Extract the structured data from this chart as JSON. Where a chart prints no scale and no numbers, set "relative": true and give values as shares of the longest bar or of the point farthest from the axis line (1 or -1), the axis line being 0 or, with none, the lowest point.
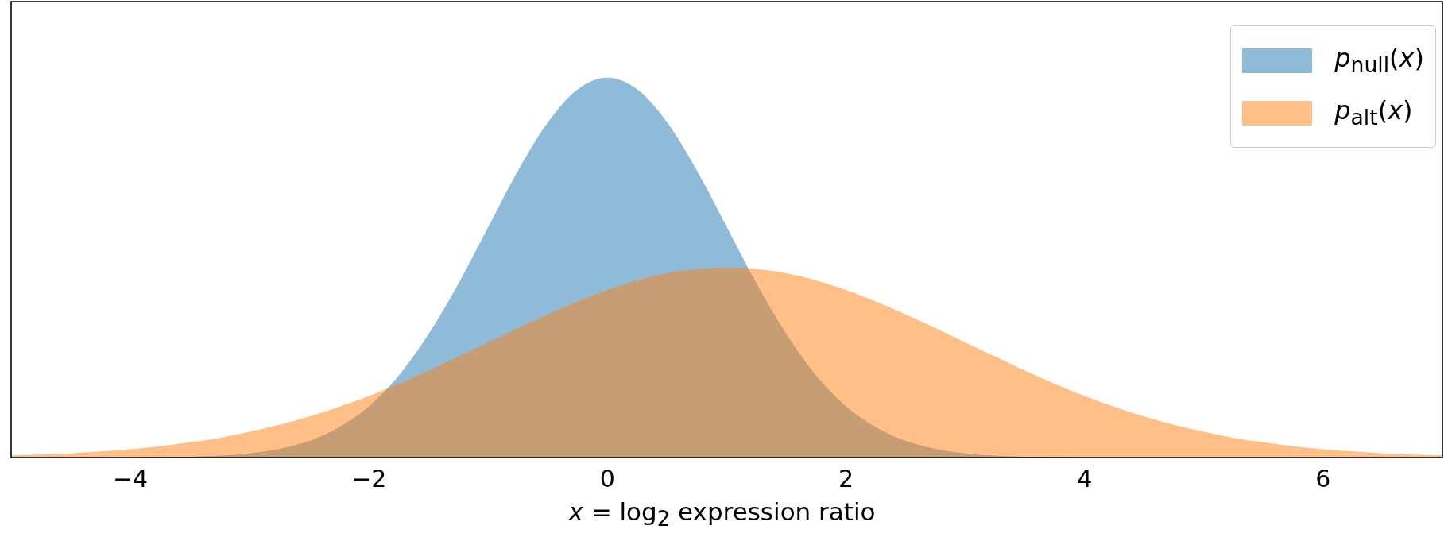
{
  "chart_data": {
    "type": "area",
    "xlabel": "x = log$_{2}$ expression ratio",
    "relative": true,
    "legend": "top right",
    "grid": false,
    "tick_labels": "x",
    "x": [
      -5,
      -4.75,
      -4.5,
      -4.25,
      -4,
      -3.75,
      -3.5,
      -3.25,
      -3,
      -2.75,
      -2.5,
      -2.25,
      -2,
      -1.75,
      -1.5,
      -1.25,
      -1,
      -0.75,
      -0.5,
      -0.25,
      0,
      0.25,
      0.5,
      0.75,
      1,
      1.25,
      1.5,
      1.75,
      2,
      2.25,
      2.5,
      2.75,
      3,
      3.25,
      3.5,
      3.75,
      4,
      4.25,
      4.5,
      4.75,
      5,
      5.25,
      5.5,
      5.75,
      6,
      6.25,
      6.5,
      6.75,
      7
    ],
    "xlim": [
      -5,
      7
    ],
    "xticks": [
      {
        "value": -4,
        "label": "−4"
      },
      {
        "value": -2,
        "label": "−2"
      },
      0,
      2,
      4,
      6
    ],
    "series": [
      {
        "name": "p$_{null}$(x)",
        "color": "#1f77b4",
        "values": [
          0,
          0,
          0,
          0,
          0,
          0.001,
          0.002,
          0.005,
          0.011,
          0.023,
          0.044,
          0.08,
          0.135,
          0.216,
          0.325,
          0.458,
          0.607,
          0.755,
          0.882,
          0.969,
          1,
          0.969,
          0.882,
          0.755,
          0.607,
          0.458,
          0.325,
          0.216,
          0.135,
          0.08,
          0.044,
          0.023,
          0.011,
          0.005,
          0.002,
          0.001,
          0,
          0,
          0,
          0,
          0,
          0,
          0,
          0,
          0,
          0,
          0,
          0,
          0
        ]
      },
      {
        "name": "p$_{alt}$(x)",
        "color": "#ff7f0e",
        "values": [
          0.006,
          0.008,
          0.011,
          0.016,
          0.022,
          0.03,
          0.04,
          0.052,
          0.068,
          0.086,
          0.108,
          0.134,
          0.162,
          0.194,
          0.229,
          0.266,
          0.303,
          0.341,
          0.377,
          0.411,
          0.441,
          0.466,
          0.485,
          0.496,
          0.5,
          0.496,
          0.485,
          0.466,
          0.441,
          0.411,
          0.377,
          0.341,
          0.303,
          0.266,
          0.229,
          0.194,
          0.162,
          0.134,
          0.108,
          0.086,
          0.068,
          0.052,
          0.04,
          0.03,
          0.022,
          0.016,
          0.011,
          0.008,
          0.006
        ]
      }
    ]
  }
}
